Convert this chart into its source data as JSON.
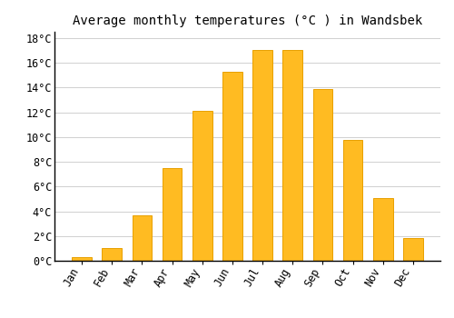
{
  "title": "Average monthly temperatures (°C ) in Wandsbek",
  "months": [
    "Jan",
    "Feb",
    "Mar",
    "Apr",
    "May",
    "Jun",
    "Jul",
    "Aug",
    "Sep",
    "Oct",
    "Nov",
    "Dec"
  ],
  "values": [
    0.3,
    1.0,
    3.7,
    7.5,
    12.1,
    15.3,
    17.0,
    17.0,
    13.9,
    9.8,
    5.1,
    1.8
  ],
  "bar_color": "#FFBB22",
  "bar_edge_color": "#E8A000",
  "ylim": [
    0,
    18.5
  ],
  "yticks": [
    0,
    2,
    4,
    6,
    8,
    10,
    12,
    14,
    16,
    18
  ],
  "background_color": "#ffffff",
  "grid_color": "#d0d0d0",
  "title_fontsize": 10,
  "tick_fontsize": 8.5
}
